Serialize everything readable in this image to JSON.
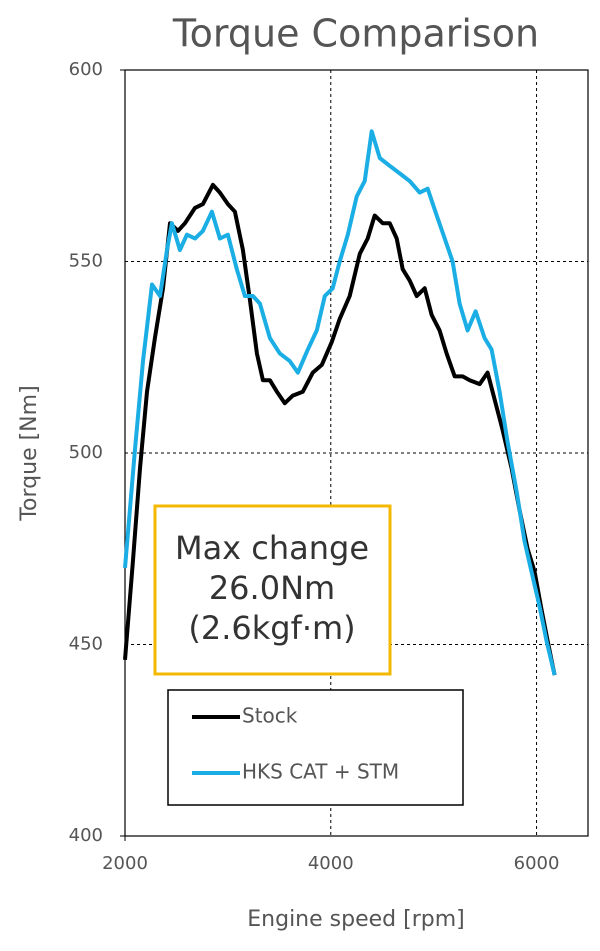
{
  "chart_data": {
    "type": "line",
    "title": "Torque Comparison",
    "x_label": "Engine speed [rpm]",
    "y_label": "Torque [Nm]",
    "xlim": [
      2000,
      6500
    ],
    "xticks": [
      2000,
      4000,
      6000
    ],
    "ylim": [
      400,
      600
    ],
    "yticks": [
      400,
      450,
      500,
      550,
      600
    ],
    "grid": true,
    "legend": "lower center",
    "annotation": [
      "Max change",
      "26.0Nm",
      "(2.6kgf·m)"
    ],
    "annotation_color": "#f5b800",
    "series": [
      {
        "name": "Stock",
        "color": "#000000",
        "x": [
          2000,
          2078,
          2146,
          2214,
          2291,
          2369,
          2437,
          2515,
          2583,
          2680,
          2757,
          2854,
          2922,
          3000,
          3068,
          3146,
          3214,
          3282,
          3340,
          3408,
          3476,
          3553,
          3631,
          3728,
          3825,
          3913,
          4010,
          4087,
          4184,
          4282,
          4359,
          4427,
          4505,
          4573,
          4641,
          4699,
          4767,
          4835,
          4913,
          4981,
          5058,
          5126,
          5204,
          5282,
          5350,
          5447,
          5524,
          5592,
          5670,
          5757,
          5835,
          5913,
          5981,
          6049,
          6107,
          6175
        ],
        "values": [
          446,
          472,
          496,
          516,
          530,
          543,
          560,
          558,
          560,
          564,
          565,
          570,
          568,
          565,
          563,
          553,
          540,
          526,
          519,
          519,
          516,
          513,
          515,
          516,
          521,
          523,
          529,
          535,
          541,
          552,
          556,
          562,
          560,
          560,
          556,
          548,
          545,
          541,
          543,
          536,
          532,
          526,
          520,
          520,
          519,
          518,
          521,
          514,
          506,
          496,
          485,
          475,
          469,
          459,
          451,
          442
        ]
      },
      {
        "name": "HKS CAT + STM",
        "color": "#1aaee5",
        "x": [
          2000,
          2097,
          2175,
          2262,
          2340,
          2408,
          2456,
          2534,
          2602,
          2680,
          2757,
          2845,
          2922,
          3000,
          3087,
          3165,
          3243,
          3311,
          3408,
          3505,
          3602,
          3680,
          3777,
          3864,
          3942,
          4019,
          4087,
          4165,
          4252,
          4330,
          4398,
          4476,
          4573,
          4670,
          4767,
          4864,
          4942,
          5029,
          5107,
          5184,
          5252,
          5330,
          5408,
          5495,
          5563,
          5641,
          5718,
          5806,
          5883,
          5951,
          6029,
          6097,
          6175
        ],
        "values": [
          470,
          501,
          524,
          544,
          541,
          553,
          560,
          553,
          557,
          556,
          558,
          563,
          556,
          557,
          548,
          541,
          541,
          539,
          530,
          526,
          524,
          521,
          527,
          532,
          541,
          543,
          550,
          557,
          567,
          571,
          584,
          577,
          575,
          573,
          571,
          568,
          569,
          562,
          556,
          550,
          539,
          532,
          537,
          530,
          527,
          516,
          503,
          490,
          477,
          469,
          460,
          451,
          442
        ]
      }
    ]
  }
}
